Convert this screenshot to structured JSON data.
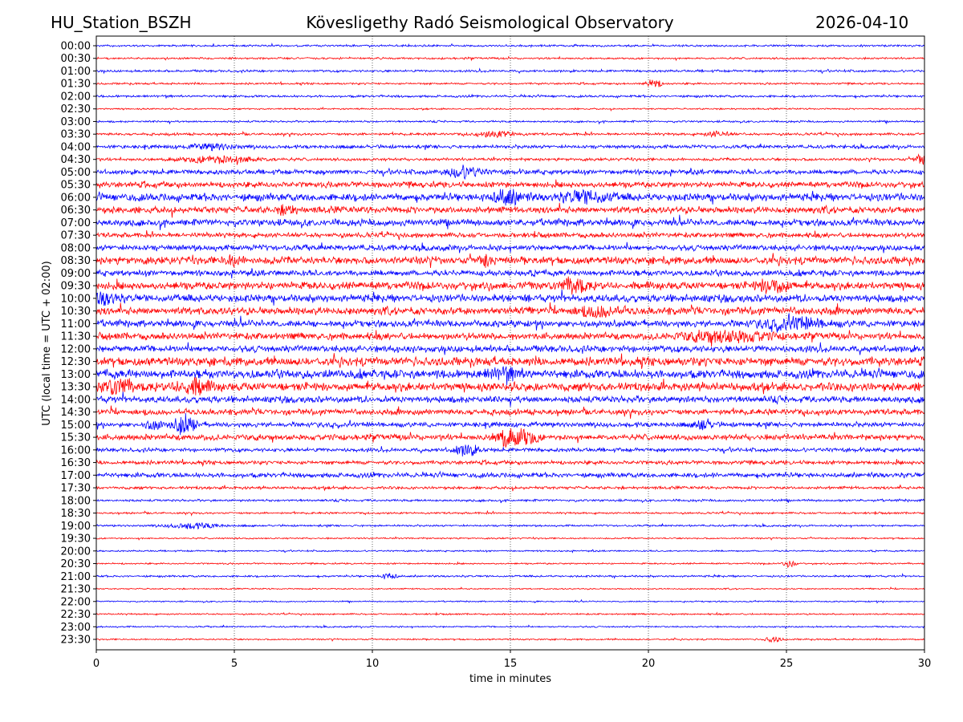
{
  "header": {
    "station": "HU_Station_BSZH",
    "observatory": "Kövesligethy Radó Seismological Observatory",
    "date": "2026-04-10"
  },
  "chart_data": {
    "type": "line",
    "subtype": "helicorder",
    "xlabel": "time in minutes",
    "ylabel": "UTC (local time = UTC + 02:00)",
    "xlim": [
      0,
      30
    ],
    "xticks": [
      0,
      5,
      10,
      15,
      20,
      25,
      30
    ],
    "grid": "vertical dotted at x ticks",
    "colors": [
      "#0000ff",
      "#ff0000"
    ],
    "rows": [
      "00:00",
      "00:30",
      "01:00",
      "01:30",
      "02:00",
      "02:30",
      "03:00",
      "03:30",
      "04:00",
      "04:30",
      "05:00",
      "05:30",
      "06:00",
      "06:30",
      "07:00",
      "07:30",
      "08:00",
      "08:30",
      "09:00",
      "09:30",
      "10:00",
      "10:30",
      "11:00",
      "11:30",
      "12:00",
      "12:30",
      "13:00",
      "13:30",
      "14:00",
      "14:30",
      "15:00",
      "15:30",
      "16:00",
      "16:30",
      "17:00",
      "17:30",
      "18:00",
      "18:30",
      "19:00",
      "19:30",
      "20:00",
      "20:30",
      "21:00",
      "21:30",
      "22:00",
      "22:30",
      "23:00",
      "23:30"
    ],
    "noise_level": [
      1,
      1,
      1.2,
      1,
      1.2,
      0.8,
      1,
      1.3,
      1.8,
      1.5,
      2.5,
      3,
      4,
      3.5,
      3.5,
      2.5,
      3,
      4,
      3,
      4,
      4,
      4,
      3.5,
      3.5,
      3.5,
      4.5,
      4.5,
      4.5,
      3.5,
      3,
      2.5,
      3,
      2,
      2,
      2.5,
      1.5,
      1.2,
      1,
      1,
      0.8,
      0.8,
      0.8,
      1,
      0.7,
      0.7,
      0.8,
      0.8,
      0.8
    ],
    "events": [
      {
        "row": 3,
        "minute": 20.2,
        "amp": 5,
        "dur": 0.4
      },
      {
        "row": 7,
        "minute": 14.5,
        "amp": 3,
        "dur": 1
      },
      {
        "row": 7,
        "minute": 22.5,
        "amp": 3,
        "dur": 0.6
      },
      {
        "row": 8,
        "minute": 4.2,
        "amp": 3,
        "dur": 1.2
      },
      {
        "row": 9,
        "minute": 4.5,
        "amp": 4,
        "dur": 2
      },
      {
        "row": 9,
        "minute": 29.9,
        "amp": 7,
        "dur": 0.3
      },
      {
        "row": 10,
        "minute": 13.3,
        "amp": 6,
        "dur": 0.8
      },
      {
        "row": 12,
        "minute": 14.9,
        "amp": 8,
        "dur": 0.8
      },
      {
        "row": 12,
        "minute": 17.8,
        "amp": 6,
        "dur": 1.2
      },
      {
        "row": 13,
        "minute": 6.9,
        "amp": 5,
        "dur": 0.4
      },
      {
        "row": 17,
        "minute": 4.9,
        "amp": 5,
        "dur": 0.4
      },
      {
        "row": 17,
        "minute": 14.1,
        "amp": 6,
        "dur": 0.3
      },
      {
        "row": 19,
        "minute": 17.3,
        "amp": 8,
        "dur": 0.6
      },
      {
        "row": 19,
        "minute": 24.5,
        "amp": 7,
        "dur": 0.8
      },
      {
        "row": 20,
        "minute": 0.3,
        "amp": 6,
        "dur": 0.6
      },
      {
        "row": 21,
        "minute": 18.2,
        "amp": 5,
        "dur": 1
      },
      {
        "row": 22,
        "minute": 25.2,
        "amp": 6,
        "dur": 1.5
      },
      {
        "row": 23,
        "minute": 22.8,
        "amp": 6,
        "dur": 2
      },
      {
        "row": 26,
        "minute": 14.8,
        "amp": 5,
        "dur": 1
      },
      {
        "row": 27,
        "minute": 0.8,
        "amp": 7,
        "dur": 0.8
      },
      {
        "row": 27,
        "minute": 3.5,
        "amp": 8,
        "dur": 0.8
      },
      {
        "row": 30,
        "minute": 3.2,
        "amp": 12,
        "dur": 0.5
      },
      {
        "row": 30,
        "minute": 2.1,
        "amp": 6,
        "dur": 0.4
      },
      {
        "row": 30,
        "minute": 22,
        "amp": 6,
        "dur": 0.4
      },
      {
        "row": 31,
        "minute": 14.8,
        "amp": 10,
        "dur": 0.5
      },
      {
        "row": 31,
        "minute": 15.5,
        "amp": 10,
        "dur": 0.6
      },
      {
        "row": 32,
        "minute": 13.4,
        "amp": 7,
        "dur": 0.6
      },
      {
        "row": 38,
        "minute": 3.5,
        "amp": 3,
        "dur": 1.3
      },
      {
        "row": 41,
        "minute": 25.1,
        "amp": 4,
        "dur": 0.3
      },
      {
        "row": 42,
        "minute": 10.6,
        "amp": 4,
        "dur": 0.4
      },
      {
        "row": 47,
        "minute": 24.5,
        "amp": 3,
        "dur": 0.4
      }
    ]
  }
}
